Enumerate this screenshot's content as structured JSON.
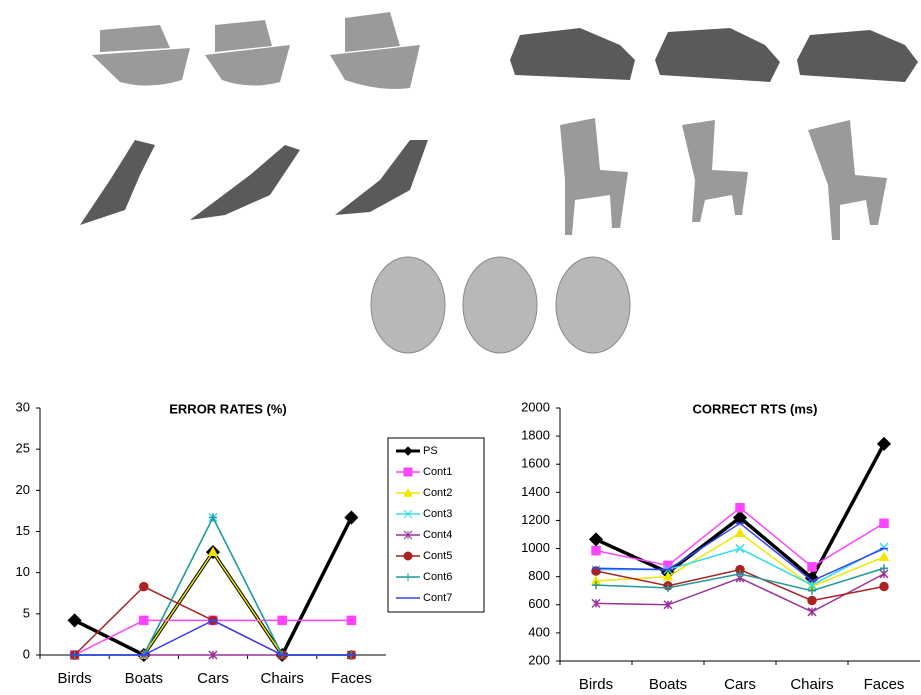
{
  "chart_data": [
    {
      "type": "line",
      "title": "ERROR RATES (%)",
      "categories": [
        "Birds",
        "Boats",
        "Cars",
        "Chairs",
        "Faces"
      ],
      "ylim": [
        0,
        30
      ],
      "yticks": [
        0,
        5,
        10,
        15,
        20,
        25,
        30
      ],
      "legend": "right",
      "series": [
        {
          "name": "PS",
          "color": "#000000",
          "marker": "diamond",
          "values": [
            4.2,
            0,
            12.5,
            0,
            16.7
          ]
        },
        {
          "name": "Cont1",
          "color": "#ff44ff",
          "marker": "square",
          "values": [
            0,
            4.2,
            4.2,
            4.2,
            4.2
          ]
        },
        {
          "name": "Cont2",
          "color": "#f2e600",
          "marker": "triangle",
          "values": [
            0,
            0,
            12.5,
            0,
            0
          ]
        },
        {
          "name": "Cont3",
          "color": "#33ddee",
          "marker": "x",
          "values": [
            0,
            0,
            16.7,
            0,
            0
          ]
        },
        {
          "name": "Cont4",
          "color": "#993399",
          "marker": "star",
          "values": [
            0,
            0,
            0,
            0,
            0
          ]
        },
        {
          "name": "Cont5",
          "color": "#aa2222",
          "marker": "circle",
          "values": [
            0,
            8.3,
            4.2,
            0,
            0
          ]
        },
        {
          "name": "Cont6",
          "color": "#229999",
          "marker": "plus",
          "values": [
            0,
            0,
            16.7,
            0,
            0
          ]
        },
        {
          "name": "Cont7",
          "color": "#3344ee",
          "marker": "dash",
          "values": [
            0,
            0,
            4.2,
            0,
            0
          ]
        }
      ]
    },
    {
      "type": "line",
      "title": "CORRECT RTS (ms)",
      "categories": [
        "Birds",
        "Boats",
        "Cars",
        "Chairs",
        "Faces"
      ],
      "ylim": [
        200,
        2000
      ],
      "yticks": [
        200,
        400,
        600,
        800,
        1000,
        1200,
        1400,
        1600,
        1800,
        2000
      ],
      "series": [
        {
          "name": "PS",
          "color": "#000000",
          "marker": "diamond",
          "values": [
            1065,
            830,
            1220,
            790,
            1745
          ]
        },
        {
          "name": "Cont1",
          "color": "#ff44ff",
          "marker": "square",
          "values": [
            985,
            880,
            1290,
            870,
            1180
          ]
        },
        {
          "name": "Cont2",
          "color": "#f2e600",
          "marker": "triangle",
          "values": [
            770,
            800,
            1110,
            730,
            940
          ]
        },
        {
          "name": "Cont3",
          "color": "#33ddee",
          "marker": "x",
          "values": [
            850,
            850,
            1000,
            740,
            1010
          ]
        },
        {
          "name": "Cont4",
          "color": "#993399",
          "marker": "star",
          "values": [
            610,
            600,
            790,
            550,
            820
          ]
        },
        {
          "name": "Cont5",
          "color": "#aa2222",
          "marker": "circle",
          "values": [
            840,
            735,
            850,
            630,
            730
          ]
        },
        {
          "name": "Cont6",
          "color": "#229999",
          "marker": "plus",
          "values": [
            740,
            720,
            820,
            700,
            860
          ]
        },
        {
          "name": "Cont7",
          "color": "#3344ee",
          "marker": "dash",
          "values": [
            860,
            850,
            1180,
            770,
            1000
          ]
        }
      ]
    }
  ]
}
